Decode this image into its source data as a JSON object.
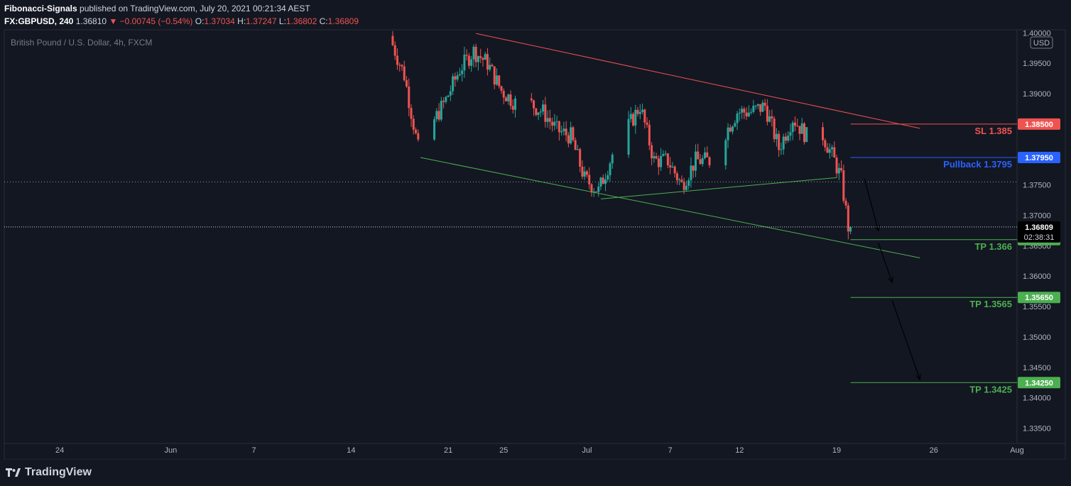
{
  "header": {
    "author": "Fibonacci-Signals",
    "published_text": "published on TradingView.com, July 20, 2021 00:21:34 AEST",
    "symbol": "FX:GBPUSD, 240",
    "last": "1.36810",
    "change": "▼ −0.00745 (−0.54%)",
    "ohlc": [
      {
        "k": "O:",
        "v": "1.37034"
      },
      {
        "k": "H:",
        "v": "1.37247"
      },
      {
        "k": "L:",
        "v": "1.36802"
      },
      {
        "k": "C:",
        "v": "1.36809"
      }
    ]
  },
  "footer": {
    "brand": "TradingView"
  },
  "colors": {
    "background": "#131722",
    "up": "#26a69a",
    "down": "#ef5350",
    "sl": "#ef5350",
    "pullback": "#2962ff",
    "tp": "#4caf50",
    "trendline_upper": "#ef5350",
    "trendline_lower": "#4caf50"
  },
  "chart_data": {
    "type": "candlestick",
    "title": "British Pound / U.S. Dollar, 4h, FXCM",
    "currency_badge": "USD",
    "ylim": [
      1.3325,
      1.4005
    ],
    "y_ticks": [
      "1.33500",
      "1.34000",
      "1.34500",
      "1.35000",
      "1.35500",
      "1.36000",
      "1.36500",
      "1.37000",
      "1.37500",
      "1.38000",
      "1.38500",
      "1.39000",
      "1.39500",
      "1.40000"
    ],
    "x_ticks": [
      "24",
      "Jun",
      "7",
      "14",
      "21",
      "25",
      "Jul",
      "7",
      "12",
      "19",
      "26",
      "Aug"
    ],
    "x_range": [
      "2021-05-20",
      "2021-08-01"
    ],
    "x_tick_dates": [
      "2021-05-24",
      "2021-06-01",
      "2021-06-07",
      "2021-06-14",
      "2021-06-21",
      "2021-06-25",
      "2021-07-01",
      "2021-07-07",
      "2021-07-12",
      "2021-07-19",
      "2021-07-26",
      "2021-08-01"
    ],
    "current_price": {
      "value": 1.36809,
      "label": "1.36809",
      "countdown": "02:38:31"
    },
    "reference_line": 1.3755,
    "levels": [
      {
        "name": "SL",
        "label": "SL 1.385",
        "tag": "1.38500",
        "value": 1.385,
        "color": "#ef5350",
        "from": "2021-07-20"
      },
      {
        "name": "Pullback",
        "label": "Pullback 1.3795",
        "tag": "1.37950",
        "value": 1.3795,
        "color": "#2962ff",
        "from": "2021-07-20"
      },
      {
        "name": "TP1",
        "label": "TP 1.366",
        "tag": "1.36600",
        "value": 1.366,
        "color": "#4caf50",
        "from": "2021-07-20"
      },
      {
        "name": "TP2",
        "label": "TP 1.3565",
        "tag": "1.35650",
        "value": 1.3565,
        "color": "#4caf50",
        "from": "2021-07-20"
      },
      {
        "name": "TP3",
        "label": "TP 1.3425",
        "tag": "1.34250",
        "value": 1.3425,
        "color": "#4caf50",
        "from": "2021-07-20"
      }
    ],
    "trendlines": [
      {
        "name": "upper-channel",
        "color": "#ef5350",
        "points": [
          [
            "2021-06-23",
            1.3999
          ],
          [
            "2021-07-25",
            1.3843
          ]
        ]
      },
      {
        "name": "lower-channel",
        "color": "#4caf50",
        "points": [
          [
            "2021-06-19",
            1.3795
          ],
          [
            "2021-07-25",
            1.363
          ]
        ]
      },
      {
        "name": "support-rising",
        "color": "#4caf50",
        "points": [
          [
            "2021-07-02",
            1.3727
          ],
          [
            "2021-07-19",
            1.3762
          ]
        ]
      }
    ],
    "arrows": [
      {
        "from": [
          "2021-07-21",
          1.376
        ],
        "to": [
          "2021-07-22",
          1.3675
        ]
      },
      {
        "from": [
          "2021-07-22",
          1.3655
        ],
        "to": [
          "2021-07-23",
          1.359
        ]
      },
      {
        "from": [
          "2021-07-23",
          1.356
        ],
        "to": [
          "2021-07-25",
          1.343
        ]
      }
    ],
    "price_series": [
      [
        "2021-06-17",
        1.399
      ],
      [
        "2021-06-18",
        1.393
      ],
      [
        "2021-06-19",
        1.381
      ],
      [
        "2021-06-20",
        1.385
      ],
      [
        "2021-06-21",
        1.389
      ],
      [
        "2021-06-22",
        1.394
      ],
      [
        "2021-06-23",
        1.397
      ],
      [
        "2021-06-24",
        1.395
      ],
      [
        "2021-06-25",
        1.3905
      ],
      [
        "2021-06-26",
        1.3885
      ],
      [
        "2021-06-27",
        1.3885
      ],
      [
        "2021-06-28",
        1.387
      ],
      [
        "2021-06-29",
        1.384
      ],
      [
        "2021-06-30",
        1.383
      ],
      [
        "2021-07-01",
        1.376
      ],
      [
        "2021-07-02",
        1.374
      ],
      [
        "2021-07-03",
        1.38
      ],
      [
        "2021-07-04",
        1.384
      ],
      [
        "2021-07-05",
        1.388
      ],
      [
        "2021-07-06",
        1.379
      ],
      [
        "2021-07-07",
        1.379
      ],
      [
        "2021-07-08",
        1.375
      ],
      [
        "2021-07-09",
        1.379
      ],
      [
        "2021-07-10",
        1.379
      ],
      [
        "2021-07-11",
        1.383
      ],
      [
        "2021-07-12",
        1.387
      ],
      [
        "2021-07-13",
        1.387
      ],
      [
        "2021-07-14",
        1.388
      ],
      [
        "2021-07-15",
        1.381
      ],
      [
        "2021-07-16",
        1.386
      ],
      [
        "2021-07-17",
        1.383
      ],
      [
        "2021-07-18",
        1.384
      ],
      [
        "2021-07-19",
        1.379
      ],
      [
        "2021-07-19T12:00",
        1.376
      ],
      [
        "2021-07-20",
        1.36809
      ]
    ]
  }
}
